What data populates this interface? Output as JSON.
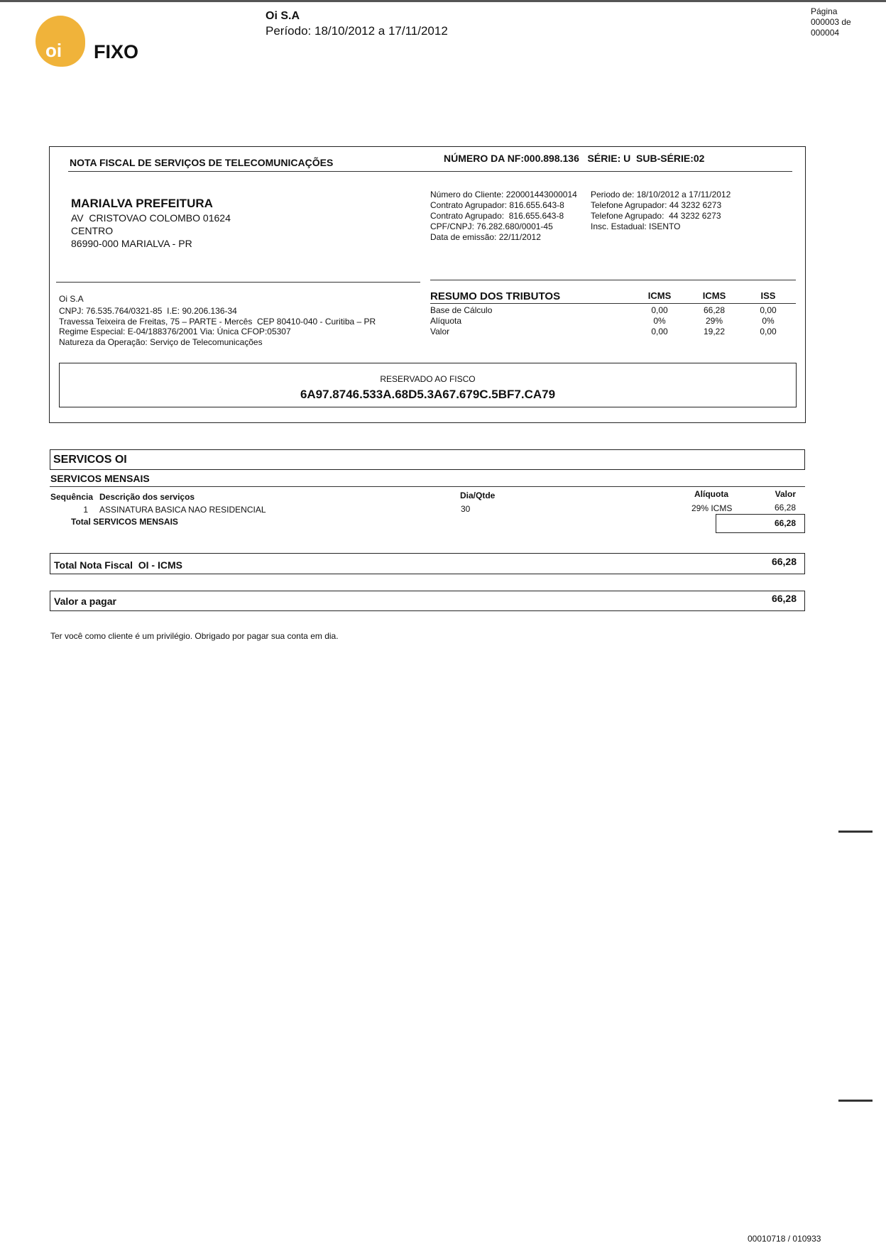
{
  "header": {
    "logo_text": "oi",
    "brand": "FIXO",
    "company": "Oi S.A",
    "period": "Período: 18/10/2012 a 17/11/2012",
    "page_label": "Página",
    "page_current": "000003 de",
    "page_total": "000004",
    "brand_color": "#F0B33A"
  },
  "invoice": {
    "title": "NOTA FISCAL DE SERVIÇOS DE TELECOMUNICAÇÕES",
    "number": "NÚMERO DA NF:000.898.136   SÉRIE: U  SUB-SÉRIE:02",
    "customer": {
      "name": "MARIALVA PREFEITURA",
      "address": "AV  CRISTOVAO COLOMBO 01624",
      "district": "CENTRO",
      "city": "86990-000 MARIALVA - PR"
    },
    "client_info_left": [
      "Número do Cliente: 220001443000014",
      "Contrato Agrupador: 816.655.643-8",
      "Contrato Agrupado:  816.655.643-8",
      "CPF/CNPJ: 76.282.680/0001-45",
      "Data de emissão: 22/11/2012"
    ],
    "client_info_right": [
      "Periodo de: 18/10/2012 a 17/11/2012",
      "Telefone Agrupador: 44 3232 6273",
      "Telefone Agrupado:  44 3232 6273",
      "Insc. Estadual: ISENTO"
    ],
    "issuer": {
      "name": "Oi S.A",
      "lines": [
        "CNPJ: 76.535.764/0321-85  I.E: 90.206.136-34",
        "Travessa Teixeira de Freitas, 75 – PARTE - Mercês  CEP 80410-040 - Curitiba – PR",
        "Regime Especial: E-04/188376/2001 Via: Única CFOP:05307",
        "Natureza da Operação: Serviço de Telecomunicações"
      ]
    },
    "taxes": {
      "title": "RESUMO DOS TRIBUTOS",
      "columns": [
        "ICMS",
        "ICMS",
        "ISS"
      ],
      "rows": [
        {
          "label": "Base de Cálculo",
          "values": [
            "0,00",
            "66,28",
            "0,00"
          ]
        },
        {
          "label": "Alíquota",
          "values": [
            "0%",
            "29%",
            "0%"
          ]
        },
        {
          "label": "Valor",
          "values": [
            "0,00",
            "19,22",
            "0,00"
          ]
        }
      ]
    },
    "fisco": {
      "label": "RESERVADO AO FISCO",
      "code": "6A97.8746.533A.68D5.3A67.679C.5BF7.CA79"
    }
  },
  "services": {
    "section_title": "SERVICOS OI",
    "group_title": "SERVICOS MENSAIS",
    "columns": {
      "seq": "Sequência",
      "desc": "Descrição dos serviços",
      "qty": "Dia/Qtde",
      "rate": "Alíquota",
      "value": "Valor"
    },
    "items": [
      {
        "seq": "1",
        "desc": "ASSINATURA BASICA NAO RESIDENCIAL",
        "qty": "30",
        "rate": "29% ICMS",
        "value": "66,28"
      }
    ],
    "group_total_label": "Total SERVICOS MENSAIS",
    "group_total": "66,28",
    "total_nf_label": "Total Nota Fiscal  OI - ICMS",
    "total_nf": "66,28",
    "pay_label": "Valor a pagar",
    "pay_value": "66,28"
  },
  "footer": {
    "message": "Ter você como cliente é um privilégio. Obrigado por pagar sua conta em dia.",
    "doc_number": "00010718 / 010933"
  }
}
